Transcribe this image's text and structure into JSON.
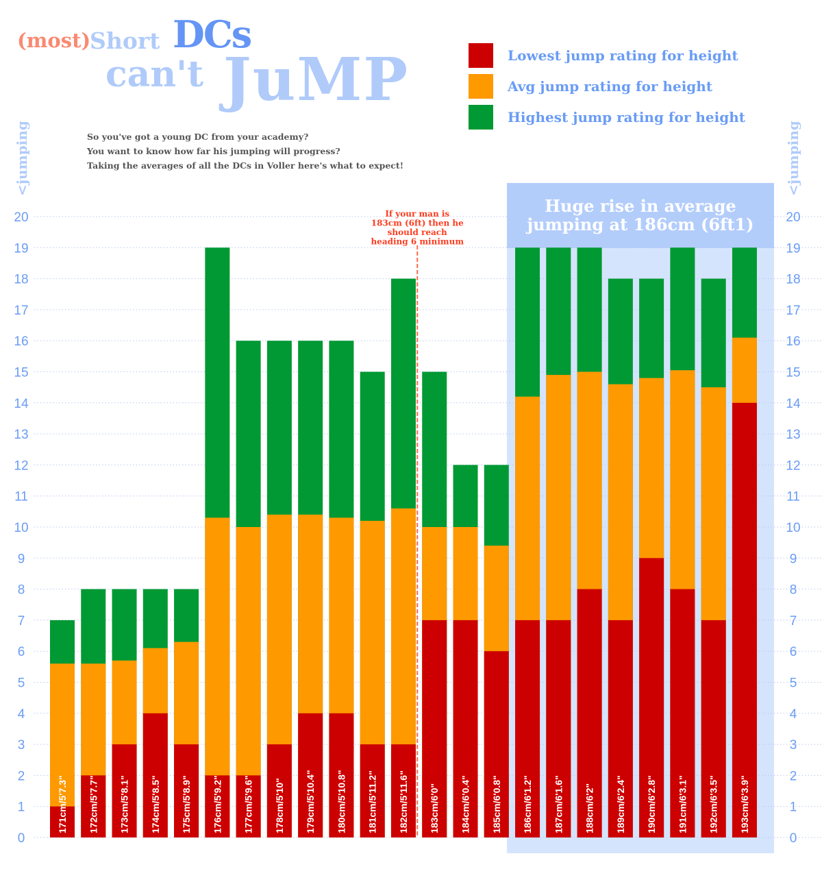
{
  "title": {
    "part1": "(most)",
    "part2": "Short",
    "part3": "DCs",
    "part4": "can't",
    "part5": "JuMP"
  },
  "subtitle": [
    "So you've got a young DC from your academy?",
    "You want to know how far his jumping will progress?",
    "Taking the averages of all the DCs in Voller here's what to expect!"
  ],
  "axis_label": "<jumping",
  "annotation": [
    "If your man is",
    "183cm (6ft) then he",
    "should reach",
    "heading 6 minimum"
  ],
  "highlight": {
    "lines": [
      "Huge rise in average",
      "jumping at 186cm (6ft1)"
    ],
    "from_category": "186cm/6'1.2\"",
    "to_category": "193cm/6'3.9\""
  },
  "colors": {
    "lowest": "#cc0000",
    "avg": "#ff9900",
    "highest": "#009933",
    "highlight": "#b3cdfb",
    "axis_text": "#6a9cf5",
    "annotation": "#ff3b1f"
  },
  "chart_data": {
    "type": "bar",
    "stacking": "overlay",
    "ylim": [
      0,
      20
    ],
    "yticks": [
      0,
      1,
      2,
      3,
      4,
      5,
      6,
      7,
      8,
      9,
      10,
      11,
      12,
      13,
      14,
      15,
      16,
      17,
      18,
      19,
      20
    ],
    "grid": true,
    "legend_position": "top-right",
    "categories": [
      "171cm/5'7.3\"",
      "172cm/5'7.7\"",
      "173cm/5'8.1\"",
      "174cm/5'8.5\"",
      "175cm/5'8.9\"",
      "176cm/5'9.2\"",
      "177cm/5'9.6\"",
      "178cm/5'10\"",
      "179cm/5'10.4\"",
      "180cm/5'10.8\"",
      "181cm/5'11.2\"",
      "182cm/5'11.6\"",
      "183cm/6'0\"",
      "184cm/6'0.4\"",
      "185cm/6'0.8\"",
      "186cm/6'1.2\"",
      "187cm/6'1.6\"",
      "188cm/6'2\"",
      "189cm/6'2.4\"",
      "190cm/6'2.8\"",
      "191cm/6'3.1\"",
      "192cm/6'3.5\"",
      "193cm/6'3.9\""
    ],
    "series": [
      {
        "name": "Highest jump rating for height",
        "color": "#009933",
        "values": [
          7,
          8,
          8,
          8,
          8,
          19,
          16,
          16,
          16,
          16,
          15,
          18,
          15,
          12,
          12,
          19,
          19,
          19,
          18,
          18,
          19,
          18,
          19
        ]
      },
      {
        "name": "Avg jump rating for height",
        "color": "#ff9900",
        "values": [
          5.6,
          5.6,
          5.7,
          6.1,
          6.3,
          10.3,
          10,
          10.4,
          10.4,
          10.3,
          10.2,
          10.6,
          10,
          10,
          9.4,
          14.2,
          14.9,
          15,
          14.6,
          14.8,
          15.05,
          14.5,
          16.1
        ]
      },
      {
        "name": "Lowest jump rating for height",
        "color": "#cc0000",
        "values": [
          1,
          2,
          3,
          4,
          3,
          2,
          2,
          3,
          4,
          4,
          3,
          3,
          7,
          7,
          6,
          7,
          7,
          8,
          7,
          9,
          8,
          7,
          14
        ]
      }
    ],
    "annotation_category": "183cm/6'0\""
  }
}
